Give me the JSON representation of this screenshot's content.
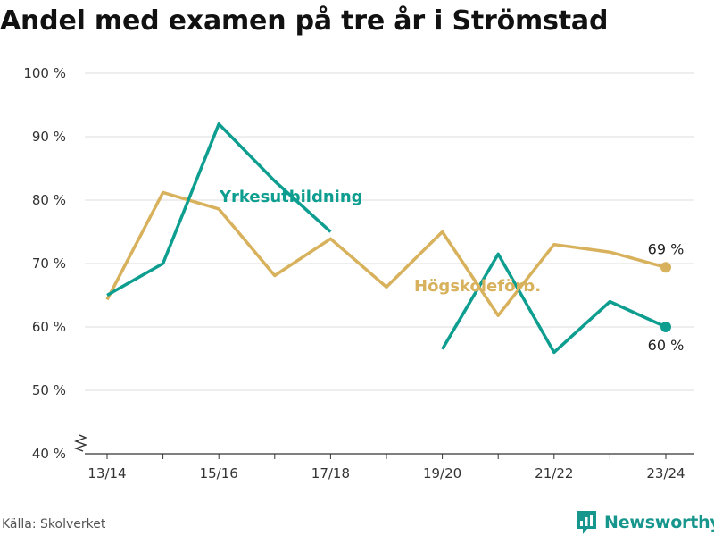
{
  "title": "Andel med examen på tre år i Strömstad",
  "source": "Källa: Skolverket",
  "brand": {
    "name": "Newsworthy",
    "icon": "newsworthy-logo-icon"
  },
  "colors": {
    "yrke": "#0e9e90",
    "hogskole": "#d8b15c",
    "grid": "#dddddd",
    "axis": "#333333",
    "brand": "#16968c"
  },
  "chart_data": {
    "type": "line",
    "title": "Andel med examen på tre år i Strömstad",
    "x": [
      "13/14",
      "14/15",
      "15/16",
      "16/17",
      "17/18",
      "18/19",
      "19/20",
      "20/21",
      "21/22",
      "22/23",
      "23/24"
    ],
    "x_tick_labels": [
      "13/14",
      "15/16",
      "17/18",
      "19/20",
      "21/22",
      "23/24"
    ],
    "y_tick_labels": [
      "40 %",
      "50 %",
      "60 %",
      "70 %",
      "80 %",
      "90 %",
      "100 %"
    ],
    "ylim": [
      40,
      100
    ],
    "y_axis_break": true,
    "grid": true,
    "series": [
      {
        "name": "Yrkesutbildning",
        "color": "#0e9e90",
        "values": [
          65,
          70,
          92,
          83,
          75,
          null,
          56.5,
          71.5,
          56,
          64,
          60
        ],
        "end_label": "60 %"
      },
      {
        "name": "Högskoleförb.",
        "color": "#d8b15c",
        "values": [
          64.3,
          81.2,
          78.6,
          68.1,
          73.9,
          66.3,
          75,
          61.8,
          73,
          71.8,
          69.4
        ],
        "end_label": "69 %"
      }
    ]
  }
}
